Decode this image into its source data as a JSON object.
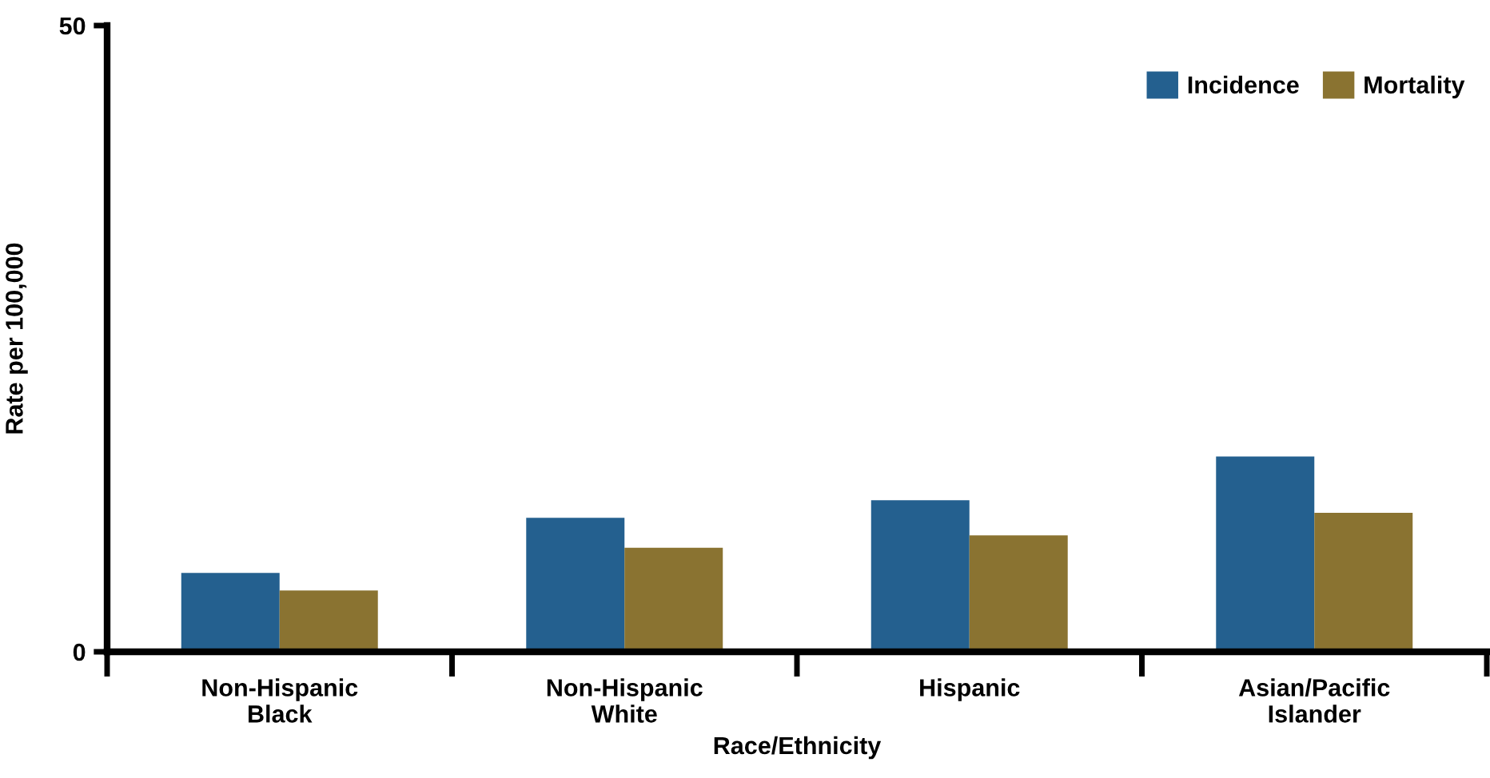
{
  "chart_data": {
    "type": "bar",
    "xlabel": "Race/Ethnicity",
    "ylabel": "Rate per 100,000",
    "categories": [
      "Non-Hispanic\nBlack",
      "Non-Hispanic\nWhite",
      "Hispanic",
      "Asian/Pacific\nIslander"
    ],
    "series": [
      {
        "name": "Incidence",
        "color": "#24608f",
        "values": [
          6.3,
          10.7,
          12.1,
          15.6
        ]
      },
      {
        "name": "Mortality",
        "color": "#8a7331",
        "values": [
          4.9,
          8.3,
          9.3,
          11.1
        ]
      }
    ],
    "ylim": [
      0,
      50
    ],
    "yticks": [
      0,
      50
    ],
    "grid": false,
    "legend": "top right"
  }
}
